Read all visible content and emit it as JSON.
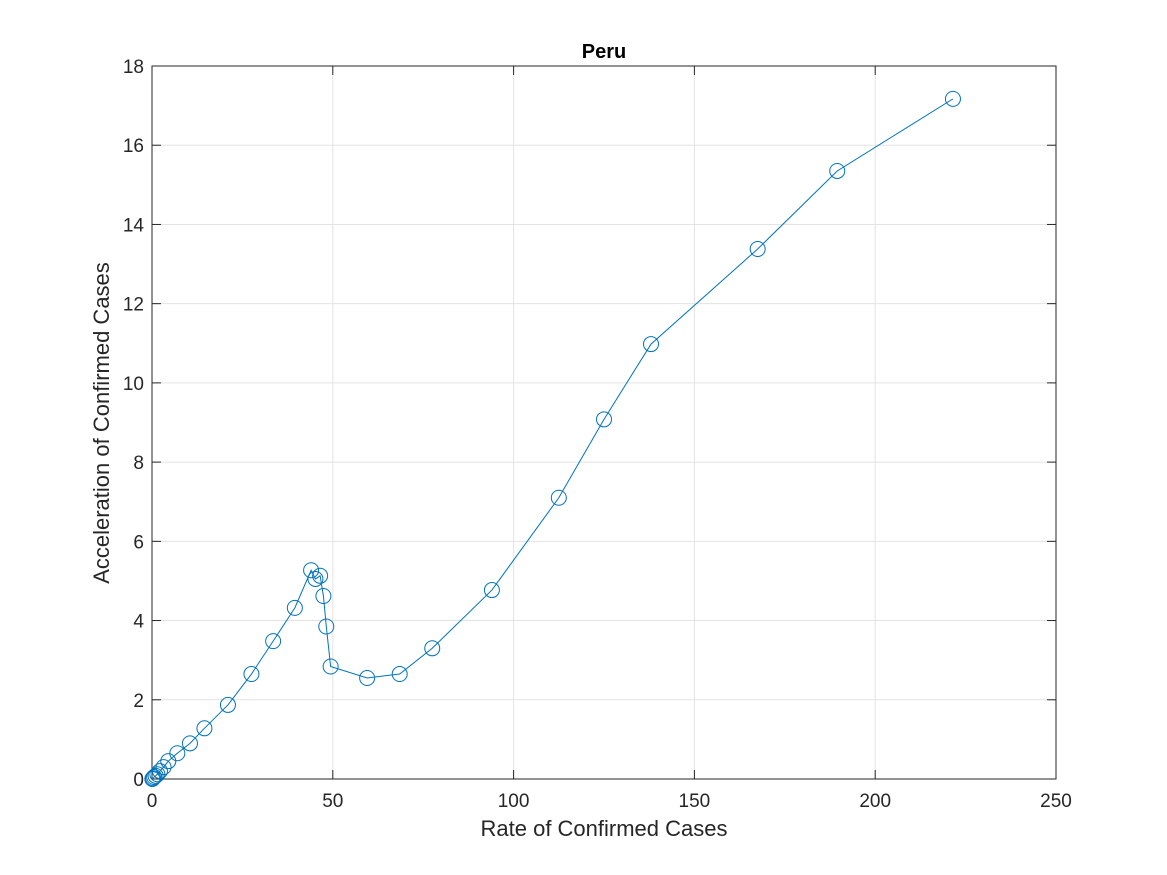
{
  "chart_data": {
    "type": "line",
    "title": "Peru",
    "xlabel": "Rate of Confirmed Cases",
    "ylabel": "Acceleration of Confirmed Cases",
    "xlim": [
      0,
      250
    ],
    "ylim": [
      0,
      18
    ],
    "xticks": [
      0,
      50,
      100,
      150,
      200,
      250
    ],
    "yticks": [
      0,
      2,
      4,
      6,
      8,
      10,
      12,
      14,
      16,
      18
    ],
    "grid": true,
    "marker": "circle",
    "series": [
      {
        "color": "#0072BD",
        "x": [
          0.1,
          0.3,
          0.6,
          1.0,
          1.5,
          2.2,
          3.2,
          4.5,
          7.0,
          10.5,
          14.5,
          21.0,
          27.5,
          33.5,
          39.5,
          44.0,
          45.2,
          46.5,
          47.4,
          48.2,
          49.4,
          59.5,
          68.5,
          77.5,
          94.0,
          112.5,
          125.0,
          138.0,
          167.5,
          189.5,
          221.5
        ],
        "y": [
          0.0,
          0.02,
          0.05,
          0.08,
          0.12,
          0.2,
          0.3,
          0.45,
          0.65,
          0.9,
          1.28,
          1.87,
          2.65,
          3.48,
          4.32,
          5.27,
          5.05,
          5.13,
          4.62,
          3.85,
          2.84,
          2.55,
          2.65,
          3.3,
          4.77,
          7.1,
          9.08,
          10.98,
          13.38,
          15.35,
          17.17
        ]
      }
    ]
  }
}
